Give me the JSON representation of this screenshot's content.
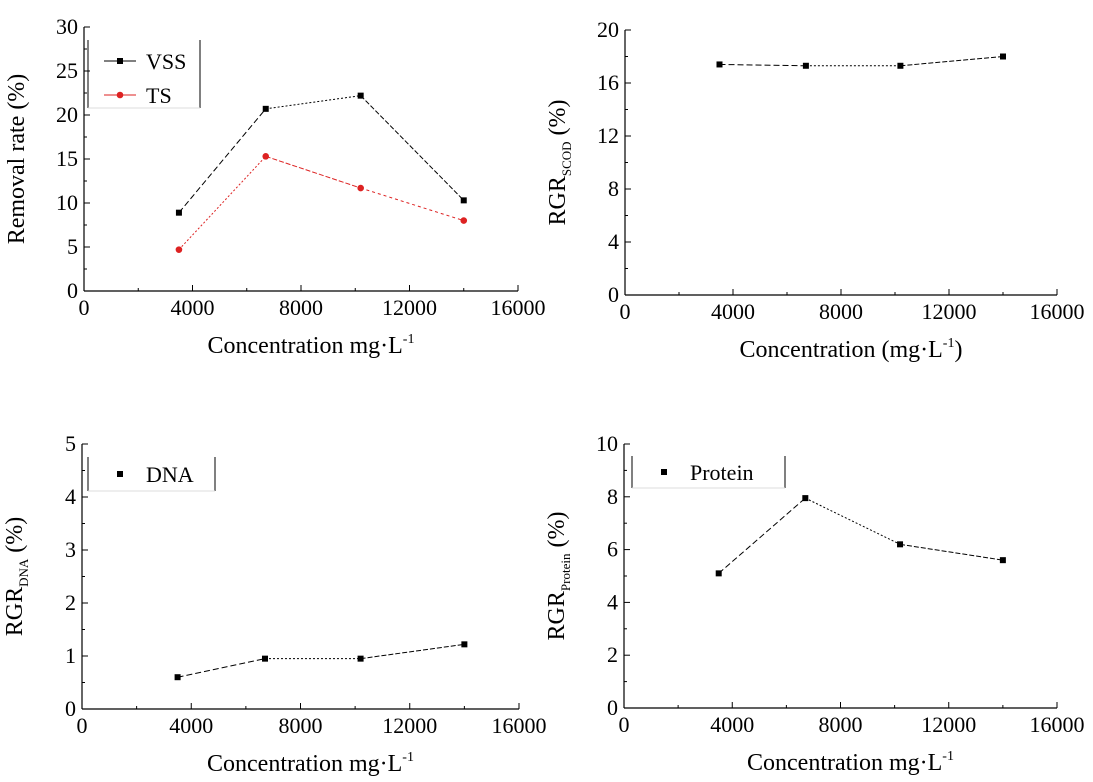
{
  "chart_data": [
    {
      "type": "line",
      "x_ticks": [
        "0",
        "4000",
        "8000",
        "12000",
        "16000"
      ],
      "y_ticks": [
        "0",
        "5",
        "10",
        "15",
        "20",
        "25",
        "30"
      ],
      "xlim": [
        0,
        16000
      ],
      "ylim": [
        0,
        30
      ],
      "xlabel_parts": [
        "Concentration mg·L",
        "-1",
        ""
      ],
      "ylabel_parts": [
        "Removal rate (%)",
        "",
        ""
      ],
      "legend": {
        "position": "top-left"
      },
      "series": [
        {
          "name": "VSS",
          "color": "#000000",
          "marker": "square",
          "points": [
            [
              3500,
              8.9
            ],
            [
              6700,
              20.7
            ],
            [
              10200,
              22.2
            ],
            [
              14000,
              10.3
            ]
          ]
        },
        {
          "name": "TS",
          "color": "#dd2222",
          "marker": "circle",
          "points": [
            [
              3500,
              4.7
            ],
            [
              6700,
              15.3
            ],
            [
              10200,
              11.7
            ],
            [
              14000,
              8.0
            ]
          ]
        }
      ]
    },
    {
      "type": "line",
      "x_ticks": [
        "0",
        "4000",
        "8000",
        "12000",
        "16000"
      ],
      "y_ticks": [
        "0",
        "4",
        "8",
        "12",
        "16",
        "20"
      ],
      "xlim": [
        0,
        16000
      ],
      "ylim": [
        0,
        20
      ],
      "xlabel_parts": [
        "Concentration (mg·L",
        "-1",
        ")"
      ],
      "ylabel_parts": [
        "RGR",
        "SCOD",
        " (%)"
      ],
      "series": [
        {
          "name": "",
          "color": "#000000",
          "marker": "square",
          "points": [
            [
              3500,
              17.4
            ],
            [
              6700,
              17.3
            ],
            [
              10200,
              17.3
            ],
            [
              14000,
              18.0
            ]
          ]
        }
      ]
    },
    {
      "type": "line",
      "x_ticks": [
        "0",
        "4000",
        "8000",
        "12000",
        "16000"
      ],
      "y_ticks": [
        "0",
        "1",
        "2",
        "3",
        "4",
        "5"
      ],
      "xlim": [
        0,
        16000
      ],
      "ylim": [
        0,
        5
      ],
      "xlabel_parts": [
        "Concentration mg·L",
        "-1",
        ""
      ],
      "ylabel_parts": [
        "RGR",
        "DNA",
        " (%)"
      ],
      "legend": {
        "position": "top-left"
      },
      "series": [
        {
          "name": "DNA",
          "color": "#000000",
          "marker": "square",
          "points": [
            [
              3500,
              0.6
            ],
            [
              6700,
              0.95
            ],
            [
              10200,
              0.95
            ],
            [
              14000,
              1.22
            ]
          ]
        }
      ]
    },
    {
      "type": "line",
      "x_ticks": [
        "0",
        "4000",
        "8000",
        "12000",
        "16000"
      ],
      "y_ticks": [
        "0",
        "2",
        "4",
        "6",
        "8",
        "10"
      ],
      "xlim": [
        0,
        16000
      ],
      "ylim": [
        0,
        10
      ],
      "xlabel_parts": [
        "Concentration mg·L",
        "-1",
        ""
      ],
      "ylabel_parts": [
        "RGR",
        "Protein",
        " (%)"
      ],
      "legend": {
        "position": "top-left"
      },
      "series": [
        {
          "name": "Protein",
          "color": "#000000",
          "marker": "square",
          "points": [
            [
              3500,
              5.1
            ],
            [
              6700,
              7.95
            ],
            [
              10200,
              6.2
            ],
            [
              14000,
              5.6
            ]
          ]
        }
      ]
    }
  ]
}
